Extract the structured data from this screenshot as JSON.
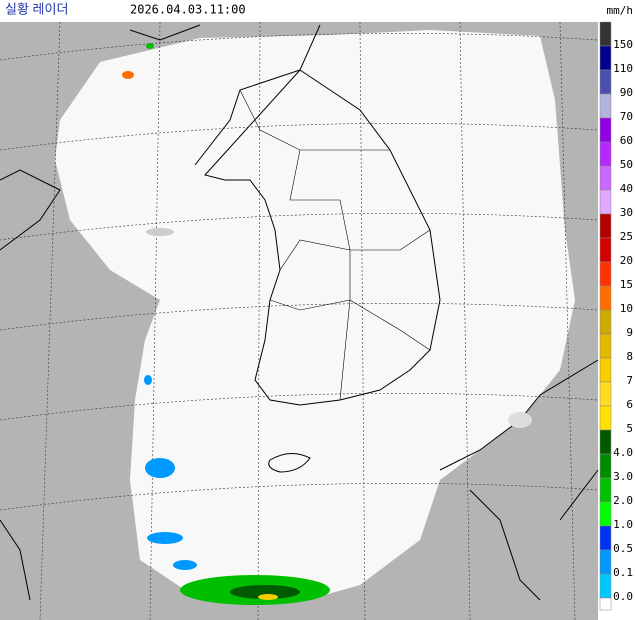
{
  "header": {
    "title": "실황 레이더",
    "timestamp": "2026.04.03.11:00",
    "unit": "mm/h"
  },
  "legend": [
    {
      "label": "150",
      "color": "#333333"
    },
    {
      "label": "110",
      "color": "#000390"
    },
    {
      "label": "90",
      "color": "#4c4eb1"
    },
    {
      "label": "70",
      "color": "#b3b4de"
    },
    {
      "label": "60",
      "color": "#9300e4"
    },
    {
      "label": "50",
      "color": "#b329ff"
    },
    {
      "label": "40",
      "color": "#c969ff"
    },
    {
      "label": "30",
      "color": "#e0a9ff"
    },
    {
      "label": "25",
      "color": "#b40000"
    },
    {
      "label": "20",
      "color": "#d20000"
    },
    {
      "label": "15",
      "color": "#ff3200"
    },
    {
      "label": "10",
      "color": "#ff6e00"
    },
    {
      "label": "9",
      "color": "#ccaa00"
    },
    {
      "label": "8",
      "color": "#e0b900"
    },
    {
      "label": "7",
      "color": "#f9cd00"
    },
    {
      "label": "6",
      "color": "#ffdc1f"
    },
    {
      "label": "5",
      "color": "#ffe100"
    },
    {
      "label": "4.0",
      "color": "#005a00"
    },
    {
      "label": "3.0",
      "color": "#008c00"
    },
    {
      "label": "2.0",
      "color": "#00be00"
    },
    {
      "label": "1.0",
      "color": "#00ff00"
    },
    {
      "label": "0.5",
      "color": "#0033f5"
    },
    {
      "label": "0.1",
      "color": "#0099ff"
    },
    {
      "label": "0.0",
      "color": "#00c8ff"
    }
  ]
}
